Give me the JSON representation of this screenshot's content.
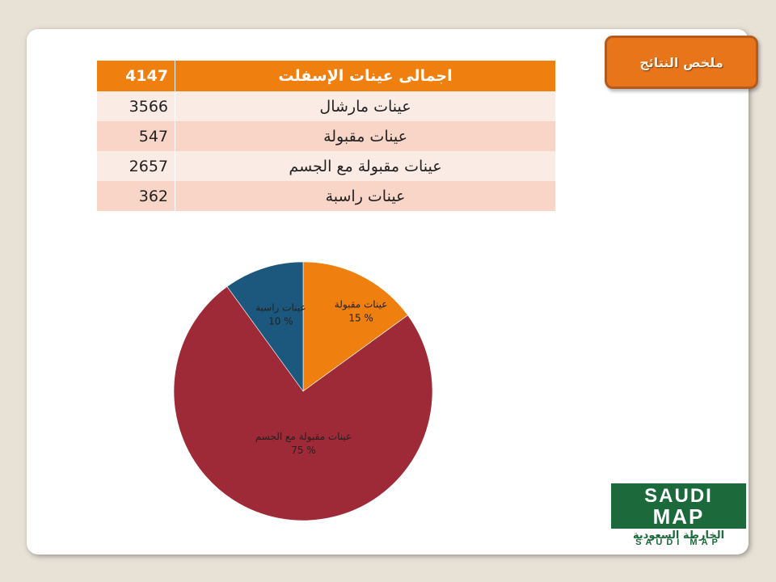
{
  "badge": {
    "label": "ملخص النتائج"
  },
  "summary_table": {
    "header": {
      "label": "اجمالى عينات الإسفلت",
      "value": "4147"
    },
    "rows": [
      {
        "label": "عينات مارشال",
        "value": "3566"
      },
      {
        "label": "عينات مقبولة",
        "value": "547"
      },
      {
        "label": "عينات مقبولة مع الجسم",
        "value": "2657"
      },
      {
        "label": "عينات راسبة",
        "value": "362"
      }
    ]
  },
  "chart_data": {
    "type": "pie",
    "slices": [
      {
        "label": "عينات مقبولة",
        "percent": 15,
        "percent_label": "15 %",
        "color": "#ef7f0e"
      },
      {
        "label": "عينات مقبولة مع الجسم",
        "percent": 75,
        "percent_label": "75 %",
        "color": "#9e2a37"
      },
      {
        "label": "عينات راسبة",
        "percent": 10,
        "percent_label": "10 %",
        "color": "#1c587e"
      }
    ],
    "legend": false
  },
  "logo": {
    "line1": "SAUDI",
    "line2": "MAP",
    "arabic": "الخارطة السعودية",
    "english": "SAUDI MAP",
    "color": "#1c6a3c"
  }
}
